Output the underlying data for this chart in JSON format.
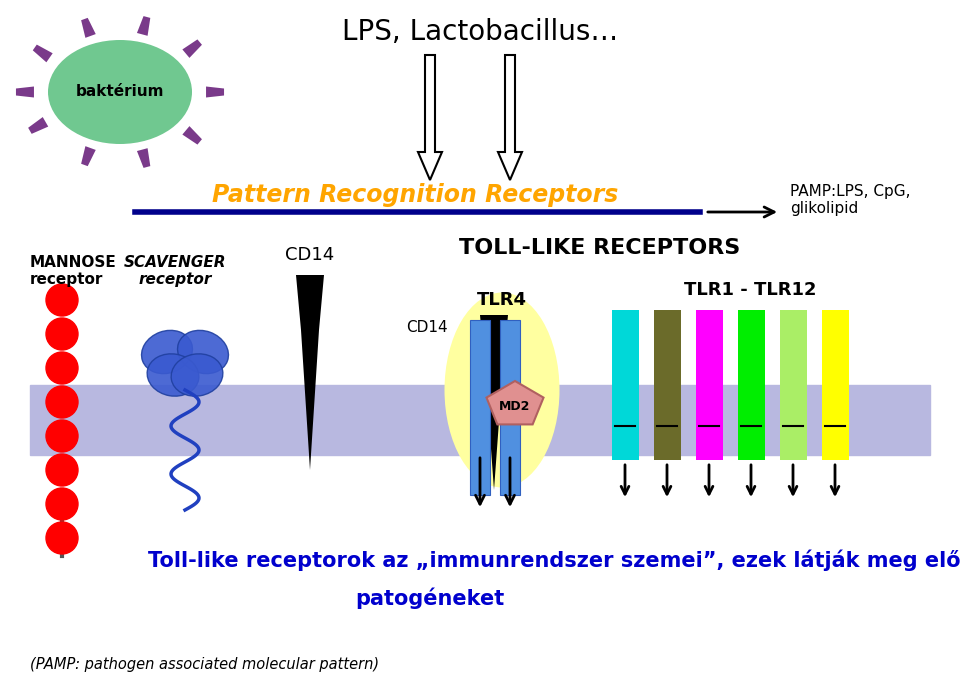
{
  "bg_color": "#ffffff",
  "membrane_color": "#b8b8e0",
  "bacterium_label": "baktérium",
  "bacterium_color": "#70c890",
  "spike_color": "#7a3a8a",
  "lps_title": "LPS, Lactobacillus…",
  "prr_label": "Pattern Recognition Receptors",
  "prr_color": "#FFA500",
  "prr_line_color": "#00008B",
  "pamp_label": "PAMP:LPS, CpG,\nglikolipid",
  "mannose_label": "MANNOSE\nreceptor",
  "scavenger_label": "SCAVENGER\nreceptor",
  "cd14_label1": "CD14",
  "tlr_label": "TOLL-LIKE RECEPTORS",
  "tlr4_label": "TLR4",
  "cd14_label2": "CD14",
  "md2_label": "MD2",
  "tlr1_12_label": "TLR1 - TLR12",
  "footer_line1": "Toll-like receptorok az „immunrendszer szemei”, ezek látják meg először a",
  "footer_line2": "patogéneket",
  "pamp_note": "(PAMP: pathogen associated molecular pattern)",
  "tlr_colors": [
    "#00d8d8",
    "#6b6b2a",
    "#ff00ff",
    "#00ee00",
    "#aaee66",
    "#ffff00"
  ],
  "text_blue": "#0000cd"
}
